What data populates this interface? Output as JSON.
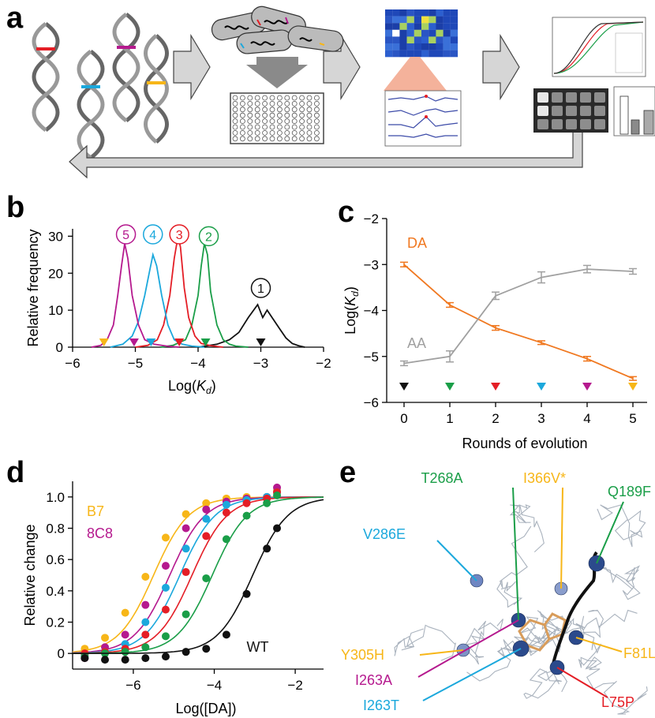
{
  "panels": {
    "a": "a",
    "b": "b",
    "c": "c",
    "d": "d",
    "e": "e"
  },
  "colors": {
    "round1": "#111111",
    "round2": "#1a9e48",
    "round3": "#e41e26",
    "round4": "#1ba8dc",
    "round5": "#b5198e",
    "round6": "#f7b618",
    "DA": "#f07820",
    "AA": "#a0a0a0"
  },
  "chart_data": [
    {
      "id": "b",
      "type": "line",
      "xlabel": "Log(K_d)",
      "ylabel": "Relative frequency",
      "xlim": [
        -6,
        -2
      ],
      "ylim": [
        0,
        32
      ],
      "xticks": [
        -6,
        -5,
        -4,
        -3,
        -2
      ],
      "yticks": [
        0,
        10,
        20,
        30
      ],
      "series": [
        {
          "name": "1",
          "color": "#111111",
          "x": [
            -4.0,
            -3.7,
            -3.5,
            -3.35,
            -3.2,
            -3.05,
            -2.97,
            -2.9,
            -2.82,
            -2.7,
            -2.6,
            -2.5,
            -2.4,
            -2.3
          ],
          "values": [
            0,
            0.8,
            2,
            4,
            8,
            11.5,
            8,
            10,
            8,
            5,
            2.5,
            1,
            0.4,
            0
          ]
        },
        {
          "name": "2",
          "color": "#1a9e48",
          "x": [
            -4.6,
            -4.4,
            -4.2,
            -4.1,
            -4.0,
            -3.95,
            -3.9,
            -3.85,
            -3.8,
            -3.7,
            -3.6,
            -3.5,
            -3.4,
            -3.2
          ],
          "values": [
            0,
            0.5,
            2,
            6,
            14,
            22,
            28,
            25,
            15,
            6,
            2,
            0.8,
            0.3,
            0
          ]
        },
        {
          "name": "3",
          "color": "#e41e26",
          "x": [
            -5.0,
            -4.8,
            -4.65,
            -4.55,
            -4.45,
            -4.38,
            -4.32,
            -4.28,
            -4.22,
            -4.15,
            -4.05,
            -3.95,
            -3.8,
            -3.6
          ],
          "values": [
            0,
            0.5,
            2,
            6,
            14,
            24,
            30,
            27,
            16,
            8,
            3,
            1,
            0.4,
            0
          ]
        },
        {
          "name": "4",
          "color": "#1ba8dc",
          "x": [
            -5.4,
            -5.2,
            -5.05,
            -4.95,
            -4.85,
            -4.78,
            -4.72,
            -4.66,
            -4.58,
            -4.48,
            -4.38,
            -4.25,
            -4.1,
            -3.9
          ],
          "values": [
            0,
            0.8,
            3,
            7,
            14,
            20,
            25,
            22,
            14,
            6,
            2,
            0.8,
            0.3,
            0
          ]
        },
        {
          "name": "5",
          "color": "#b5198e",
          "x": [
            -5.7,
            -5.55,
            -5.45,
            -5.35,
            -5.28,
            -5.22,
            -5.17,
            -5.12,
            -5.05,
            -4.95,
            -4.85,
            -4.7,
            -4.5,
            -4.3
          ],
          "values": [
            0,
            0.5,
            2,
            6,
            14,
            22,
            28,
            24,
            14,
            6,
            2,
            0.8,
            0.3,
            0
          ]
        }
      ],
      "markers": [
        {
          "x": -5.5,
          "color": "#f7b618"
        },
        {
          "x": -5.02,
          "color": "#b5198e"
        },
        {
          "x": -4.75,
          "color": "#1ba8dc"
        },
        {
          "x": -4.3,
          "color": "#e41e26"
        },
        {
          "x": -3.88,
          "color": "#1a9e48"
        },
        {
          "x": -3.0,
          "color": "#111111"
        }
      ],
      "labels": [
        {
          "text": "5",
          "x": -5.15,
          "y": 30.5,
          "color": "#b5198e"
        },
        {
          "text": "4",
          "x": -4.72,
          "y": 30.5,
          "color": "#1ba8dc"
        },
        {
          "text": "3",
          "x": -4.3,
          "y": 30.5,
          "color": "#e41e26"
        },
        {
          "text": "2",
          "x": -3.83,
          "y": 30,
          "color": "#1a9e48"
        },
        {
          "text": "1",
          "x": -3.0,
          "y": 16,
          "color": "#111111"
        }
      ]
    },
    {
      "id": "c",
      "type": "line",
      "xlabel": "Rounds of evolution",
      "ylabel": "Log(K_d)",
      "xlim": [
        -0.5,
        5.4
      ],
      "ylim": [
        -6,
        -2
      ],
      "xticks": [
        0,
        1,
        2,
        3,
        4,
        5
      ],
      "yticks": [
        -6,
        -5,
        -4,
        -3,
        -2
      ],
      "x": [
        0,
        1,
        2,
        3,
        4,
        5
      ],
      "series": [
        {
          "name": "DA",
          "color": "#f07820",
          "values": [
            -3.0,
            -3.88,
            -4.38,
            -4.7,
            -5.05,
            -5.48
          ],
          "err": [
            0.05,
            0.05,
            0.05,
            0.04,
            0.05,
            0.04
          ]
        },
        {
          "name": "AA",
          "color": "#a0a0a0",
          "values": [
            -5.15,
            -5.0,
            -3.68,
            -3.28,
            -3.1,
            -3.15
          ],
          "err": [
            0.05,
            0.12,
            0.08,
            0.12,
            0.08,
            0.06
          ]
        }
      ],
      "markers": [
        {
          "x": 0,
          "color": "#111111"
        },
        {
          "x": 1,
          "color": "#1a9e48"
        },
        {
          "x": 2,
          "color": "#e41e26"
        },
        {
          "x": 3,
          "color": "#1ba8dc"
        },
        {
          "x": 4,
          "color": "#b5198e"
        },
        {
          "x": 5,
          "color": "#f7b618"
        }
      ]
    },
    {
      "id": "d",
      "type": "scatter",
      "xlabel": "Log([DA])",
      "ylabel": "Relative change",
      "xlim": [
        -7.5,
        -1.3
      ],
      "ylim": [
        -0.1,
        1.1
      ],
      "xticks": [
        -6,
        -4,
        -2
      ],
      "yticks": [
        0,
        0.2,
        0.4,
        0.6,
        0.8,
        1.0
      ],
      "x": [
        -7.2,
        -6.7,
        -6.2,
        -5.7,
        -5.2,
        -4.7,
        -4.2,
        -3.7,
        -3.2,
        -2.7,
        -2.45
      ],
      "series": [
        {
          "name": "B7",
          "color": "#f7b618",
          "ec50": -5.5,
          "values": [
            0.03,
            0.1,
            0.26,
            0.49,
            0.74,
            0.89,
            0.96,
            0.99,
            1.0,
            1.0,
            1.04
          ]
        },
        {
          "name": "8C8",
          "color": "#b5198e",
          "ec50": -5.1,
          "values": [
            -0.03,
            0.04,
            0.12,
            0.31,
            0.56,
            0.8,
            0.92,
            0.97,
            0.99,
            1.0,
            1.06
          ]
        },
        {
          "name": "",
          "color": "#1ba8dc",
          "ec50": -4.85,
          "values": [
            -0.01,
            0.01,
            0.06,
            0.2,
            0.42,
            0.67,
            0.86,
            0.95,
            0.98,
            1.0,
            1.03
          ]
        },
        {
          "name": "",
          "color": "#e41e26",
          "ec50": -4.55,
          "values": [
            0.0,
            0.01,
            0.03,
            0.12,
            0.28,
            0.52,
            0.75,
            0.9,
            0.96,
            0.99,
            1.03
          ]
        },
        {
          "name": "",
          "color": "#1a9e48",
          "ec50": -4.05,
          "values": [
            -0.02,
            0.0,
            0.01,
            0.04,
            0.11,
            0.25,
            0.48,
            0.73,
            0.88,
            0.96,
            1.01
          ]
        },
        {
          "name": "WT",
          "color": "#111111",
          "ec50": -3.05,
          "values": [
            -0.03,
            -0.04,
            -0.04,
            -0.03,
            -0.02,
            0.01,
            0.03,
            0.12,
            0.38,
            0.67,
            0.8
          ]
        }
      ]
    }
  ],
  "mutations": [
    {
      "label": "V286E",
      "color": "#1ba8dc"
    },
    {
      "label": "T268A",
      "color": "#1a9e48"
    },
    {
      "label": "I366V*",
      "color": "#f7b618"
    },
    {
      "label": "Q189F",
      "color": "#1a9e48"
    },
    {
      "label": "Y305H",
      "color": "#f7b618"
    },
    {
      "label": "F81L",
      "color": "#f7b618"
    },
    {
      "label": "I263A",
      "color": "#b5198e"
    },
    {
      "label": "I263T",
      "color": "#1ba8dc"
    },
    {
      "label": "L75P",
      "color": "#e41e26"
    }
  ]
}
